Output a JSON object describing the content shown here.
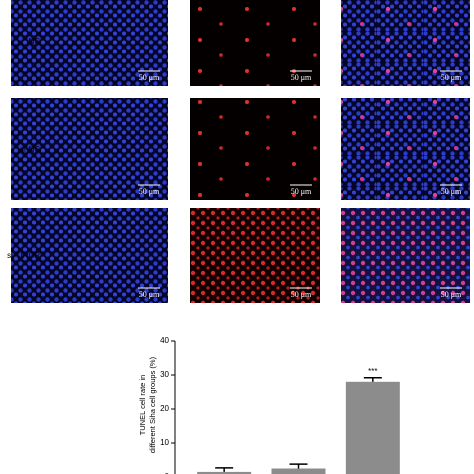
{
  "panels": {
    "rows": [
      "NC",
      "si-NC",
      "si-TINCR"
    ],
    "scale_bar": "50 μm"
  },
  "chart_data": {
    "type": "bar",
    "ylabel": [
      "TUNEL cell rate in",
      "different Siha cell groups (%)"
    ],
    "categories": [
      null,
      null,
      null
    ],
    "values": [
      1.5,
      2.5,
      28
    ],
    "errors": [
      1.2,
      1.3,
      1.2
    ],
    "color": "#8c8c8c",
    "ylim": [
      0,
      40
    ],
    "yticks": [
      0,
      10,
      20,
      30,
      40
    ],
    "annotations": [
      "***"
    ]
  }
}
